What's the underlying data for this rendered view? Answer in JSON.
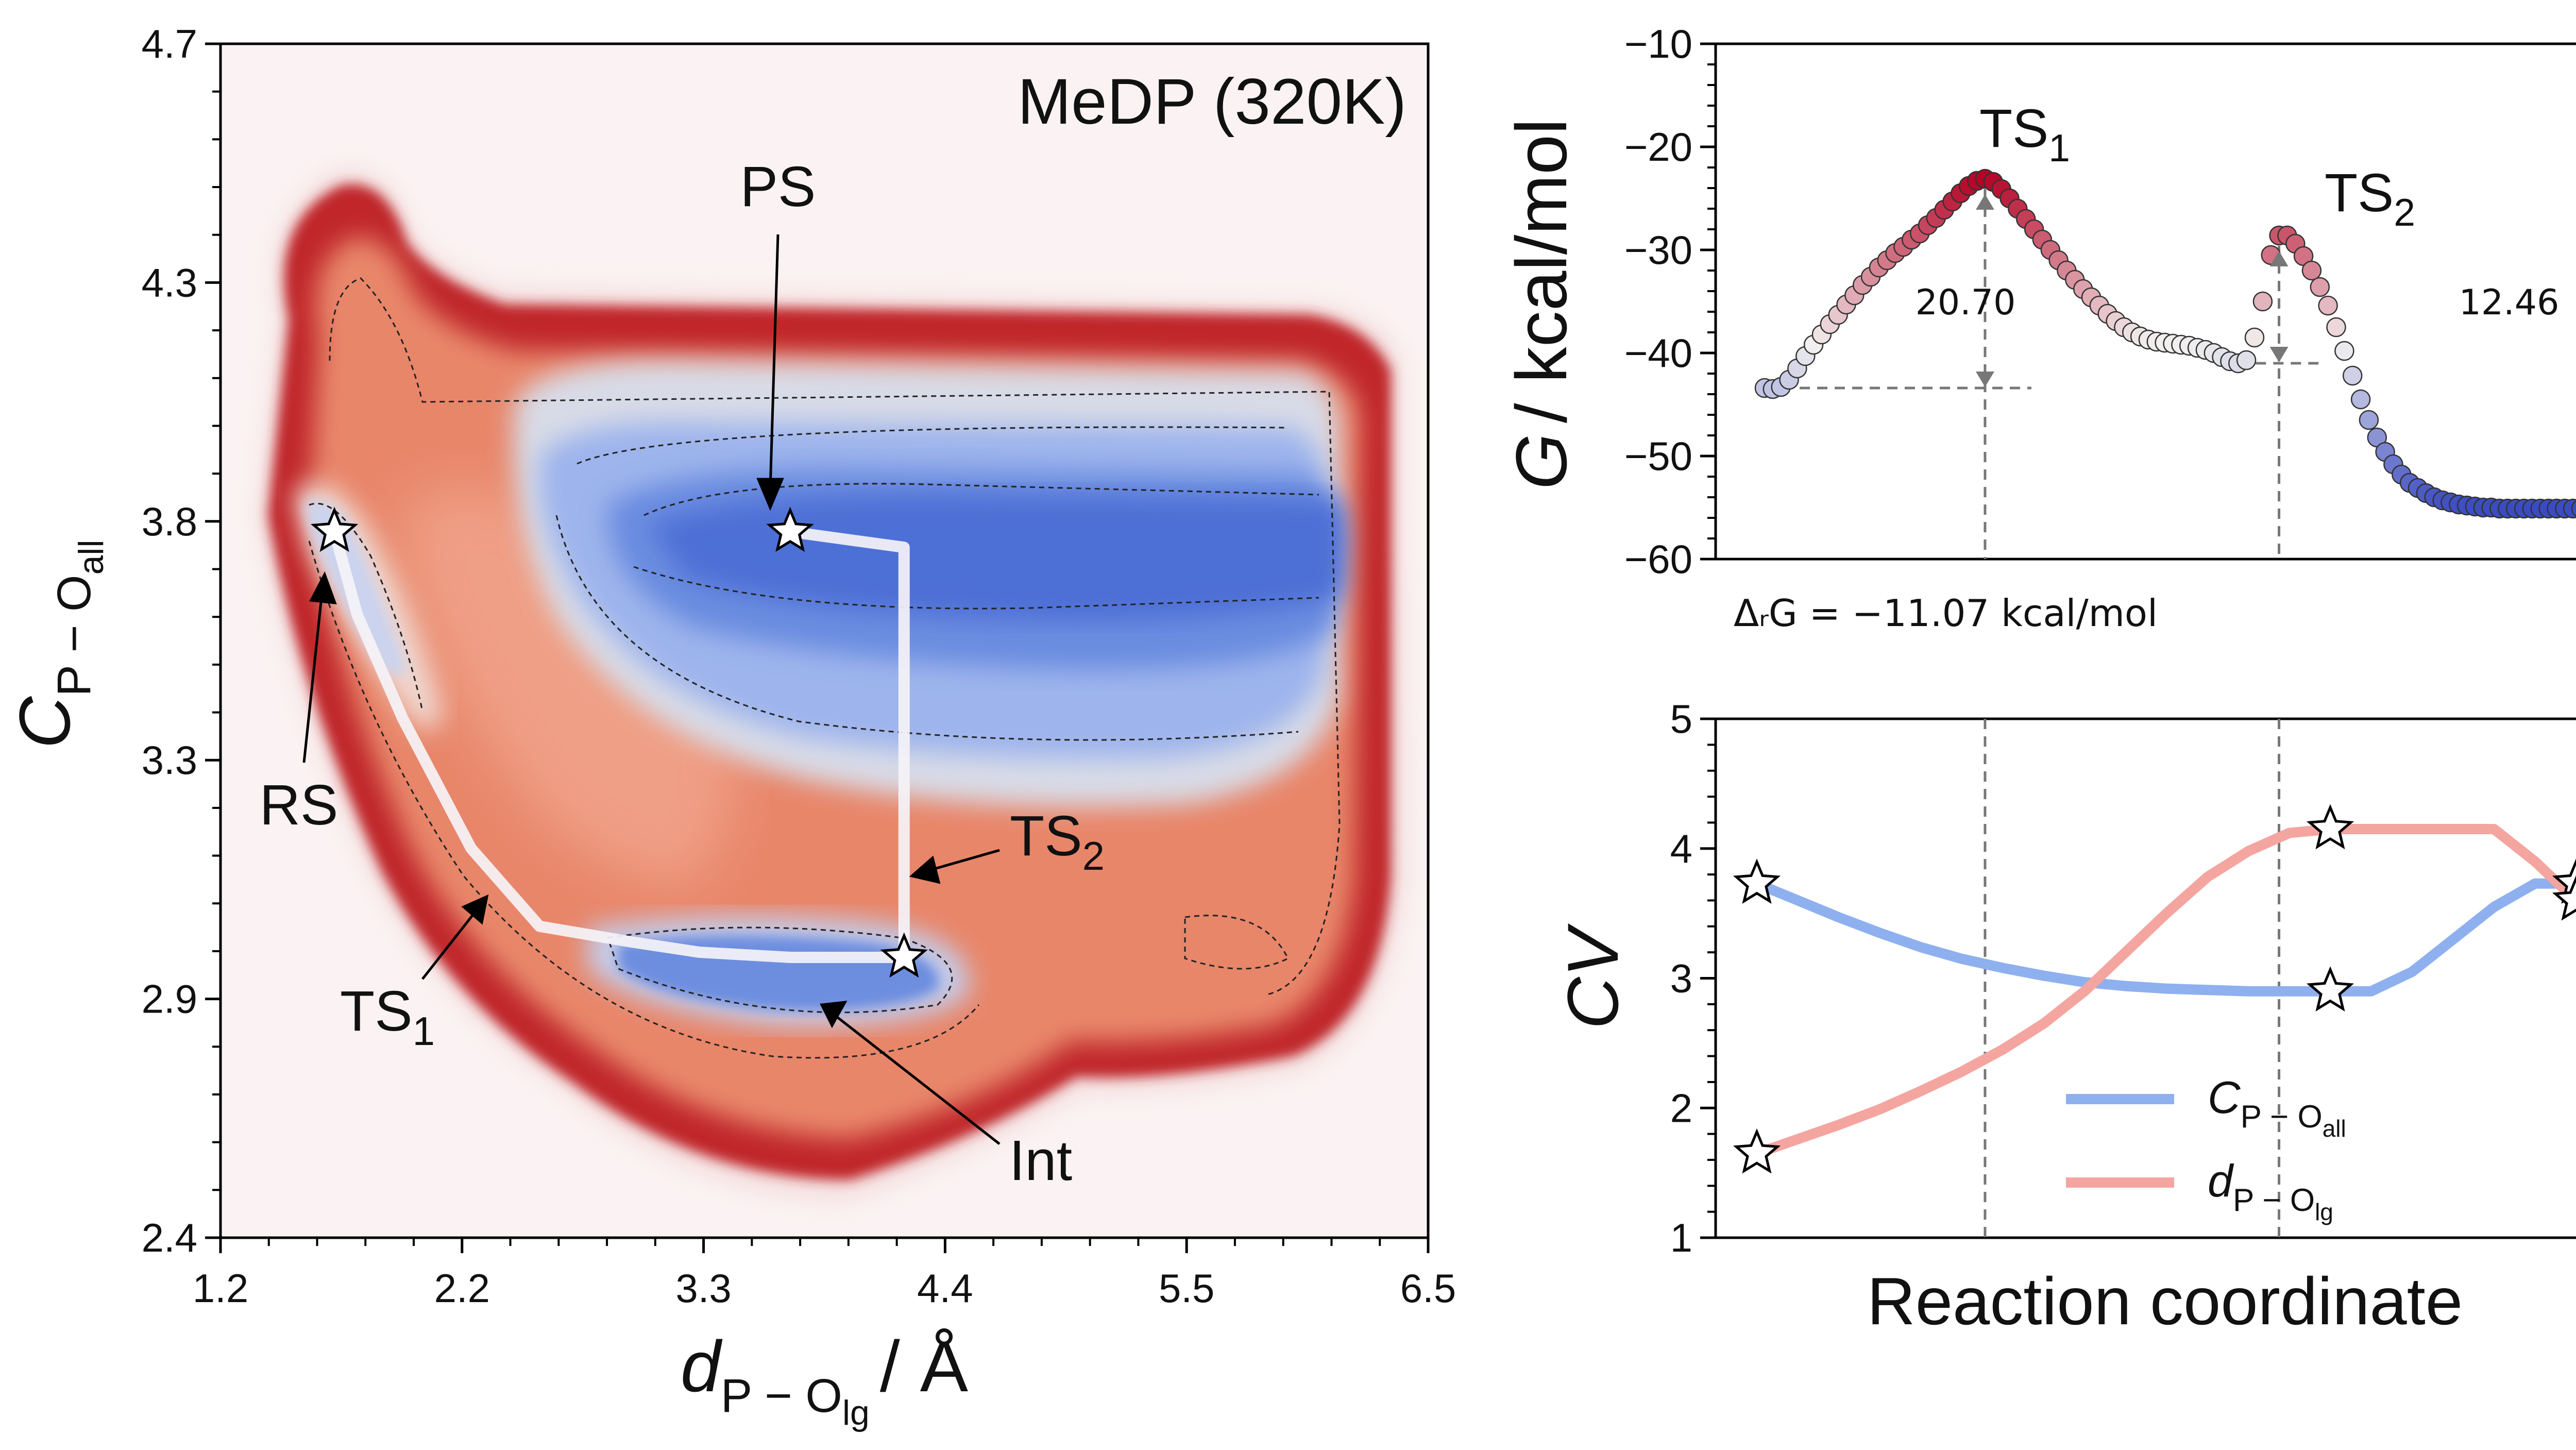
{
  "chart_data": [
    {
      "type": "heatmap",
      "title": "MeDP (320K)",
      "xlabel": {
        "main": "d",
        "sub": "P − O",
        "subsub": "lg",
        "unit": "/ Å"
      },
      "ylabel": {
        "main": "C",
        "sub": "P − O",
        "subsub": "all"
      },
      "xlim": [
        1.2,
        6.5
      ],
      "ylim": [
        2.4,
        4.7
      ],
      "xticks": [
        "1.2",
        "2.2",
        "3.3",
        "4.4",
        "5.5",
        "6.5"
      ],
      "yticks": [
        "2.4",
        "2.9",
        "3.3",
        "3.8",
        "4.3",
        "4.7"
      ],
      "colormap": [
        "#3b4cc0",
        "#f2f0ef",
        "#b40426"
      ],
      "states": [
        {
          "name": "RS",
          "x": 1.7,
          "y": 3.76
        },
        {
          "name": "PS",
          "x": 3.7,
          "y": 3.76
        },
        {
          "name": "Int",
          "x": 4.2,
          "y": 2.94
        },
        {
          "name": "TS1",
          "sub": "1",
          "x": 2.2,
          "y": 3.05
        },
        {
          "name": "TS2",
          "sub": "2",
          "x": 4.2,
          "y": 3.15
        }
      ],
      "path": [
        [
          1.7,
          3.76
        ],
        [
          1.8,
          3.6
        ],
        [
          2.0,
          3.4
        ],
        [
          2.3,
          3.15
        ],
        [
          2.6,
          3.0
        ],
        [
          3.0,
          2.97
        ],
        [
          3.3,
          2.95
        ],
        [
          3.7,
          2.94
        ],
        [
          4.2,
          2.94
        ],
        [
          4.2,
          3.73
        ],
        [
          3.7,
          3.76
        ]
      ]
    },
    {
      "type": "scatter",
      "ylabel": {
        "main": "G",
        "unit": "/ kcal/mol"
      },
      "ylim": [
        -60,
        -10
      ],
      "yticks": [
        "−10",
        "−20",
        "−30",
        "−40",
        "−50",
        "−60"
      ],
      "x": [
        0,
        1,
        2,
        3,
        4,
        5,
        6,
        7,
        8,
        9,
        10,
        11,
        12,
        13,
        14,
        15,
        16,
        17,
        18,
        19,
        20,
        21,
        22,
        23,
        24,
        25,
        26,
        27,
        28,
        29,
        30,
        31,
        32,
        33,
        34,
        35,
        36,
        37,
        38,
        39,
        40,
        41,
        42,
        43,
        44,
        45,
        46,
        47,
        48,
        49,
        50,
        51,
        52,
        53,
        54,
        55,
        56,
        57,
        58,
        59,
        60,
        61,
        62,
        63,
        64,
        65,
        66,
        67,
        68,
        69,
        70,
        71,
        72,
        73,
        74,
        75,
        76,
        77,
        78,
        79,
        80,
        81,
        82,
        83,
        84,
        85,
        86,
        87,
        88,
        89,
        90,
        91,
        92,
        93,
        94,
        95,
        96,
        97,
        98,
        99,
        100
      ],
      "values": [
        -43.4,
        -43.5,
        -43.3,
        -42.6,
        -41.5,
        -40.3,
        -39.2,
        -38.2,
        -37.2,
        -36.3,
        -35.3,
        -34.4,
        -33.4,
        -32.6,
        -31.7,
        -31.0,
        -30.3,
        -29.7,
        -29.0,
        -28.4,
        -27.6,
        -26.9,
        -26.1,
        -25.3,
        -24.5,
        -23.8,
        -23.3,
        -23.1,
        -23.4,
        -24.1,
        -25.0,
        -26.0,
        -27.0,
        -28.0,
        -29.0,
        -30.0,
        -31.0,
        -32.0,
        -32.9,
        -33.8,
        -34.6,
        -35.4,
        -36.2,
        -36.9,
        -37.5,
        -38.0,
        -38.4,
        -38.7,
        -38.9,
        -39.0,
        -39.1,
        -39.2,
        -39.3,
        -39.5,
        -39.7,
        -40.0,
        -40.4,
        -40.8,
        -41.0,
        -40.7,
        -38.5,
        -35.0,
        -30.5,
        -28.6,
        -28.6,
        -29.4,
        -30.6,
        -32.0,
        -33.6,
        -35.4,
        -37.5,
        -39.8,
        -42.2,
        -44.5,
        -46.5,
        -48.2,
        -49.6,
        -50.8,
        -51.8,
        -52.6,
        -53.1,
        -53.6,
        -54.0,
        -54.3,
        -54.5,
        -54.7,
        -54.8,
        -54.9,
        -55.0,
        -55.0,
        -55.1,
        -55.1,
        -55.1,
        -55.1,
        -55.1,
        -55.1,
        -55.1,
        -55.1,
        -55.1,
        -55.1,
        -55.1
      ],
      "ts_labels": [
        {
          "name": "TS",
          "sub": "1"
        },
        {
          "name": "TS",
          "sub": "2"
        }
      ],
      "barriers": [
        "20.70",
        "12.46"
      ],
      "reaction_energy": "ΔᵣG = −11.07 kcal/mol",
      "colormap": [
        "#3b4cc0",
        "#f2f0ef",
        "#b40426"
      ]
    },
    {
      "type": "line",
      "xlabel": "Reaction coordinate",
      "ylabel": "CV",
      "ylim": [
        1,
        5
      ],
      "yticks": [
        "1",
        "2",
        "3",
        "4",
        "5"
      ],
      "x": [
        0,
        5,
        10,
        15,
        20,
        25,
        30,
        35,
        40,
        45,
        50,
        55,
        60,
        65,
        70,
        75,
        80,
        85,
        90,
        95,
        100
      ],
      "series": [
        {
          "name": "C",
          "sub": "P − O",
          "subsub": "all",
          "color": "#8fb0ef",
          "values": [
            3.73,
            3.6,
            3.47,
            3.35,
            3.24,
            3.15,
            3.08,
            3.02,
            2.97,
            2.94,
            2.92,
            2.91,
            2.9,
            2.9,
            2.9,
            2.9,
            3.05,
            3.3,
            3.55,
            3.73,
            3.73
          ]
        },
        {
          "name": "d",
          "sub": "P − O",
          "subsub": "lg",
          "color": "#f4a5a0",
          "values": [
            1.65,
            1.76,
            1.87,
            1.99,
            2.13,
            2.28,
            2.45,
            2.65,
            2.9,
            3.2,
            3.5,
            3.78,
            3.98,
            4.12,
            4.15,
            4.15,
            4.15,
            4.15,
            4.15,
            3.9,
            3.6
          ]
        }
      ]
    }
  ]
}
